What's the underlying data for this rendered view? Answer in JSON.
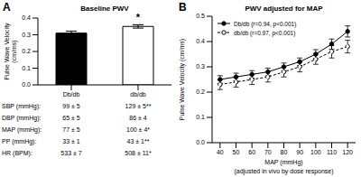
{
  "chart_data": [
    {
      "type": "bar",
      "panel": "A",
      "title": "Baseline PWV",
      "y_label": [
        "Pulse Wave Velocity",
        "(cm/ms)"
      ],
      "categories": [
        "Db/db",
        "db/db"
      ],
      "values": [
        0.31,
        0.35
      ],
      "errors": [
        0.012,
        0.01
      ],
      "colors": [
        "#000000",
        "#ffffff"
      ],
      "ylim": [
        0,
        0.4
      ],
      "yticks": [
        {
          "value": 0,
          "label": "0.0"
        },
        0.1,
        0.2,
        0.3,
        0.4
      ],
      "annotations": [
        {
          "text": "*",
          "category": "db/db"
        }
      ],
      "grid": false,
      "table": {
        "rows": [
          [
            "SBP (mmHg):",
            "99 ± 5",
            "129 ± 5**"
          ],
          [
            "DBP (mmHg):",
            "65 ± 5",
            "86 ± 4"
          ],
          [
            "MAP (mmHg):",
            "77 ± 5",
            "100 ± 4*"
          ],
          [
            "PP (mmHg):",
            "33 ± 1",
            "43 ± 1**"
          ],
          [
            "HR (BPM):",
            "533 ± 7",
            "508 ± 11*"
          ]
        ]
      }
    },
    {
      "type": "line",
      "panel": "B",
      "title": "PWV adjusted for MAP",
      "y_label": "Pulse Wave Velocity (cm/ms)",
      "x_label": "MAP (mmHg)",
      "x_sublabel": "(adjusted in vivo by dose response)",
      "x": [
        40,
        50,
        60,
        70,
        80,
        90,
        100,
        110,
        120
      ],
      "xlim": [
        35,
        125
      ],
      "xticks": [
        40,
        50,
        60,
        70,
        80,
        90,
        100,
        110,
        120
      ],
      "ylim": [
        0,
        0.5
      ],
      "yticks": [
        {
          "value": 0,
          "label": "0.0"
        },
        0.1,
        0.2,
        0.3,
        0.4,
        0.5
      ],
      "legend": "upper left",
      "grid": false,
      "series": [
        {
          "name": "Db/db (r=0.94, p<0.001)",
          "color": "#000000",
          "marker": "circle",
          "line_style": "solid",
          "values": [
            0.25,
            0.26,
            0.27,
            0.28,
            0.3,
            0.32,
            0.35,
            0.39,
            0.44
          ],
          "errors": [
            0.015,
            0.015,
            0.015,
            0.015,
            0.015,
            0.015,
            0.018,
            0.02,
            0.022
          ]
        },
        {
          "name": "db/db (r=0.97, p<0.001)",
          "color": "#000000",
          "marker": "open_circle",
          "line_style": "dashed",
          "values": [
            0.23,
            0.24,
            0.25,
            0.26,
            0.28,
            0.3,
            0.33,
            0.36,
            0.38
          ],
          "errors": [
            0.02,
            0.02,
            0.02,
            0.02,
            0.02,
            0.02,
            0.02,
            0.025,
            0.025
          ]
        }
      ]
    }
  ]
}
